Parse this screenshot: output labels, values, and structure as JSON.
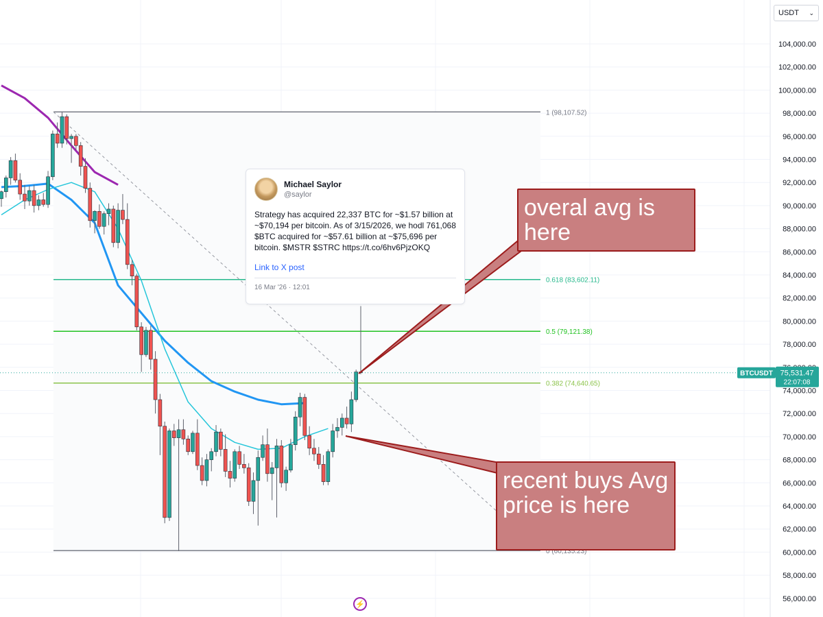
{
  "currency_select": {
    "value": "USDT",
    "chevron": "chevron-down-icon"
  },
  "price_scale": {
    "labels": [
      {
        "v": 104000,
        "t": "104,000.00"
      },
      {
        "v": 102000,
        "t": "102,000.00"
      },
      {
        "v": 100000,
        "t": "100,000.00"
      },
      {
        "v": 98000,
        "t": "98,000.00"
      },
      {
        "v": 96000,
        "t": "96,000.00"
      },
      {
        "v": 94000,
        "t": "94,000.00"
      },
      {
        "v": 92000,
        "t": "92,000.00"
      },
      {
        "v": 90000,
        "t": "90,000.00"
      },
      {
        "v": 88000,
        "t": "88,000.00"
      },
      {
        "v": 86000,
        "t": "86,000.00"
      },
      {
        "v": 84000,
        "t": "84,000.00"
      },
      {
        "v": 82000,
        "t": "82,000.00"
      },
      {
        "v": 80000,
        "t": "80,000.00"
      },
      {
        "v": 78000,
        "t": "78,000.00"
      },
      {
        "v": 76000,
        "t": "76,000.00"
      },
      {
        "v": 74000,
        "t": "74,000.00"
      },
      {
        "v": 72000,
        "t": "72,000.00"
      },
      {
        "v": 70000,
        "t": "70,000.00"
      },
      {
        "v": 68000,
        "t": "68,000.00"
      },
      {
        "v": 66000,
        "t": "66,000.00"
      },
      {
        "v": 64000,
        "t": "64,000.00"
      },
      {
        "v": 62000,
        "t": "62,000.00"
      },
      {
        "v": 60000,
        "t": "60,000.00"
      },
      {
        "v": 58000,
        "t": "58,000.00"
      },
      {
        "v": 56000,
        "t": "56,000.00"
      }
    ]
  },
  "symbol_tag": {
    "symbol": "BTCUSDT",
    "price": "75,531.47",
    "countdown": "22:07:08"
  },
  "tweet": {
    "name": "Michael Saylor",
    "handle": "@saylor",
    "text": "Strategy has acquired 22,337 BTC for ~$1.57 billion at ~$70,194 per bitcoin. As of 3/15/2026, we hodl 761,068 $BTC acquired for ~$57.61 billion at ~$75,696 per bitcoin. $MSTR $STRC https://t.co/6hv6PjzOKQ",
    "link": "Link to X post",
    "date": "16 Mar '26 · 12:01"
  },
  "callouts": {
    "overall": "overal avg is here",
    "recent": "recent buys Avg price is here"
  },
  "colors": {
    "up": "#26a69a",
    "down": "#ef5350",
    "ma200": "#9c27b0",
    "ma50": "#2196f3",
    "ma20": "#26c6da",
    "fib_0618": "#26b88c",
    "fib_05": "#21c221",
    "fib_0382": "#8bc34a",
    "fib_edge": "#787b86",
    "callout_fill": "#c97f80",
    "callout_border": "#9c1c1c"
  },
  "chart_data": {
    "type": "candlestick",
    "symbol": "BTCUSDT",
    "quote_currency": "USDT",
    "ylim": [
      55000,
      105000
    ],
    "last_price": 75531.47,
    "fibonacci": [
      {
        "level": "1",
        "value": 98107.52,
        "label": "1 (98,107.52)"
      },
      {
        "level": "0.618",
        "value": 83602.11,
        "label": "0.618 (83,602.11)"
      },
      {
        "level": "0.5",
        "value": 79121.38,
        "label": "0.5 (79,121.38)"
      },
      {
        "level": "0.382",
        "value": 74640.65,
        "label": "0.382 (74,640.65)"
      },
      {
        "level": "0",
        "value": 60135.23,
        "label": "0 (60,135.23)"
      }
    ],
    "candles": [
      [
        90600,
        91300,
        89900,
        91200
      ],
      [
        91200,
        92600,
        90700,
        92400
      ],
      [
        92400,
        94200,
        91800,
        93900
      ],
      [
        93900,
        94500,
        92000,
        92200
      ],
      [
        92200,
        92800,
        90500,
        91000
      ],
      [
        91000,
        91800,
        89700,
        90400
      ],
      [
        90400,
        91700,
        90000,
        91300
      ],
      [
        91300,
        91800,
        89400,
        90000
      ],
      [
        90000,
        90900,
        89600,
        90500
      ],
      [
        90500,
        91100,
        89900,
        90100
      ],
      [
        90100,
        93000,
        89800,
        92500
      ],
      [
        92500,
        96500,
        92200,
        96200
      ],
      [
        96200,
        97200,
        95000,
        95400
      ],
      [
        95400,
        98100,
        95000,
        97700
      ],
      [
        97700,
        97900,
        95300,
        95800
      ],
      [
        95800,
        96200,
        93700,
        96000
      ],
      [
        96000,
        96200,
        94800,
        95200
      ],
      [
        95200,
        95500,
        92600,
        93400
      ],
      [
        93400,
        94100,
        91100,
        91500
      ],
      [
        91500,
        92000,
        88100,
        88700
      ],
      [
        88700,
        89600,
        87600,
        89500
      ],
      [
        89500,
        90100,
        88000,
        88200
      ],
      [
        88200,
        89500,
        87500,
        89300
      ],
      [
        89300,
        90200,
        88300,
        89700
      ],
      [
        89700,
        90000,
        86400,
        86800
      ],
      [
        86800,
        90200,
        86300,
        89600
      ],
      [
        89600,
        91000,
        88400,
        88800
      ],
      [
        88800,
        90200,
        84500,
        84900
      ],
      [
        84900,
        85300,
        83100,
        83900
      ],
      [
        83900,
        84100,
        79200,
        79500
      ],
      [
        79500,
        79900,
        75600,
        77100
      ],
      [
        77100,
        79500,
        76900,
        79200
      ],
      [
        79200,
        79600,
        75800,
        76700
      ],
      [
        76700,
        77400,
        72000,
        73200
      ],
      [
        73200,
        73700,
        68400,
        70900
      ],
      [
        70900,
        71300,
        62500,
        63000
      ],
      [
        63000,
        70700,
        62700,
        70500
      ],
      [
        70500,
        71100,
        69200,
        69900
      ],
      [
        69900,
        71500,
        60100,
        70600
      ],
      [
        70600,
        71500,
        69300,
        69800
      ],
      [
        69800,
        70100,
        68400,
        68700
      ],
      [
        68700,
        70500,
        68500,
        70300
      ],
      [
        70300,
        71500,
        67100,
        67500
      ],
      [
        67500,
        68200,
        65800,
        66200
      ],
      [
        66200,
        68500,
        65700,
        68000
      ],
      [
        68000,
        69000,
        67000,
        68700
      ],
      [
        68700,
        71000,
        68300,
        70400
      ],
      [
        70400,
        70700,
        68300,
        68900
      ],
      [
        68900,
        70200,
        66500,
        67000
      ],
      [
        67000,
        67900,
        65600,
        66400
      ],
      [
        66400,
        68900,
        66100,
        68700
      ],
      [
        68700,
        69200,
        67200,
        67600
      ],
      [
        67600,
        68500,
        66800,
        67300
      ],
      [
        67300,
        67700,
        64000,
        64400
      ],
      [
        64400,
        66900,
        63300,
        66200
      ],
      [
        66200,
        68800,
        62300,
        68200
      ],
      [
        68200,
        70100,
        67900,
        69300
      ],
      [
        69300,
        70700,
        66100,
        66800
      ],
      [
        66800,
        67800,
        64500,
        67300
      ],
      [
        67300,
        69800,
        63000,
        69200
      ],
      [
        69200,
        69700,
        65600,
        66000
      ],
      [
        66000,
        67400,
        65300,
        67100
      ],
      [
        67100,
        69800,
        66900,
        69300
      ],
      [
        69300,
        72200,
        68800,
        71700
      ],
      [
        71700,
        73800,
        70900,
        73400
      ],
      [
        73400,
        73700,
        69700,
        70100
      ],
      [
        70100,
        70900,
        68400,
        69000
      ],
      [
        69000,
        69800,
        67900,
        68500
      ],
      [
        68500,
        69100,
        67200,
        67600
      ],
      [
        67600,
        68400,
        65800,
        66100
      ],
      [
        66100,
        68900,
        65800,
        68700
      ],
      [
        68700,
        71100,
        68200,
        70500
      ],
      [
        70500,
        71600,
        69900,
        70800
      ],
      [
        70800,
        72000,
        70100,
        71600
      ],
      [
        71600,
        72600,
        70700,
        71100
      ],
      [
        71100,
        73900,
        70400,
        73200
      ],
      [
        73200,
        75800,
        73000,
        75600
      ],
      [
        75600,
        81300,
        75400,
        75531.47
      ]
    ],
    "moving_averages": [
      {
        "name": "MA200",
        "values": [
          [
            0,
            100400
          ],
          [
            20,
            99300
          ],
          [
            40,
            97600
          ],
          [
            60,
            95200
          ],
          [
            80,
            92900
          ],
          [
            100,
            91800
          ]
        ]
      },
      {
        "name": "MA50",
        "values": [
          [
            0,
            91600
          ],
          [
            20,
            91700
          ],
          [
            40,
            91900
          ],
          [
            60,
            90500
          ],
          [
            80,
            88500
          ],
          [
            100,
            83100
          ],
          [
            120,
            80700
          ],
          [
            140,
            78300
          ],
          [
            160,
            76400
          ],
          [
            180,
            74800
          ],
          [
            200,
            73900
          ],
          [
            220,
            73200
          ],
          [
            240,
            72800
          ],
          [
            260,
            72900
          ]
        ]
      },
      {
        "name": "MA20",
        "values": [
          [
            0,
            89200
          ],
          [
            20,
            90500
          ],
          [
            40,
            91400
          ],
          [
            60,
            92000
          ],
          [
            80,
            91200
          ],
          [
            100,
            88000
          ],
          [
            120,
            83500
          ],
          [
            140,
            77600
          ],
          [
            160,
            73000
          ],
          [
            180,
            70700
          ],
          [
            200,
            69500
          ],
          [
            220,
            68900
          ],
          [
            240,
            69000
          ],
          [
            260,
            70000
          ],
          [
            280,
            70700
          ]
        ]
      }
    ]
  }
}
